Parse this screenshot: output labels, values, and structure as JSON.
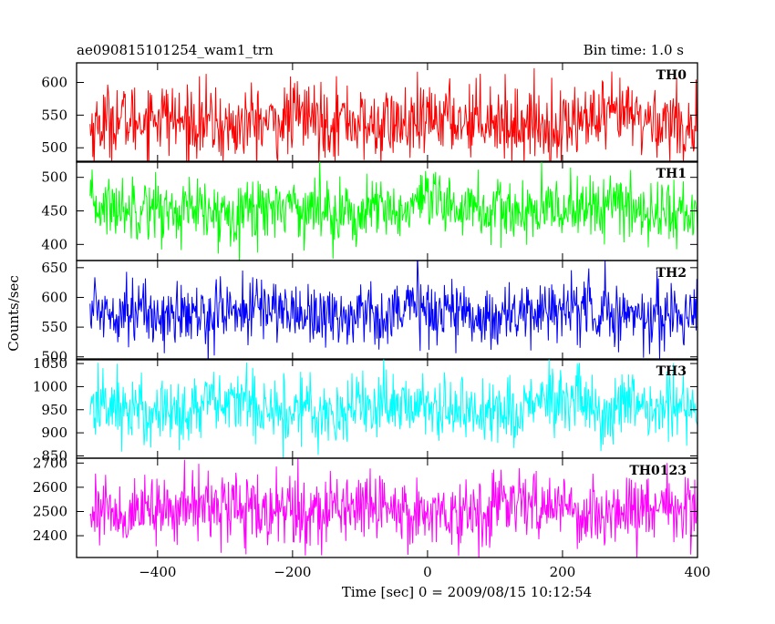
{
  "header": {
    "title": "ae090815101254_wam1_trn",
    "bin_time": "Bin time: 1.0 s"
  },
  "chart_data": {
    "type": "line",
    "title": "ae090815101254_wam1_trn",
    "xlabel": "Time [sec] 0 = 2009/08/15 10:12:54",
    "ylabel": "Counts/sec",
    "xlim": [
      -520,
      400
    ],
    "x_ticks": [
      -400,
      -200,
      0,
      200,
      400
    ],
    "x_tick_labels": [
      "−400",
      "−200",
      "0",
      "200",
      "400"
    ],
    "x_range": [
      -500,
      400
    ],
    "bin_time_s": 1.0,
    "grid": false,
    "panels": [
      {
        "label": "TH0",
        "color": "#ff0000",
        "ylim": [
          478,
          630
        ],
        "yticks": [
          500,
          550,
          600
        ],
        "mean": 540,
        "spread": 28
      },
      {
        "label": "TH1",
        "color": "#00ff00",
        "ylim": [
          376,
          524
        ],
        "yticks": [
          400,
          450,
          500
        ],
        "mean": 452,
        "spread": 24
      },
      {
        "label": "TH2",
        "color": "#0000ff",
        "ylim": [
          495,
          662
        ],
        "yticks": [
          500,
          550,
          600,
          650
        ],
        "mean": 575,
        "spread": 27
      },
      {
        "label": "TH3",
        "color": "#00ffff",
        "ylim": [
          845,
          1060
        ],
        "yticks": [
          850,
          900,
          950,
          1000,
          1050
        ],
        "mean": 955,
        "spread": 38
      },
      {
        "label": "TH0123",
        "color": "#ff00ff",
        "ylim": [
          2310,
          2720
        ],
        "yticks": [
          2400,
          2500,
          2600,
          2700
        ],
        "mean": 2510,
        "spread": 70
      }
    ]
  }
}
